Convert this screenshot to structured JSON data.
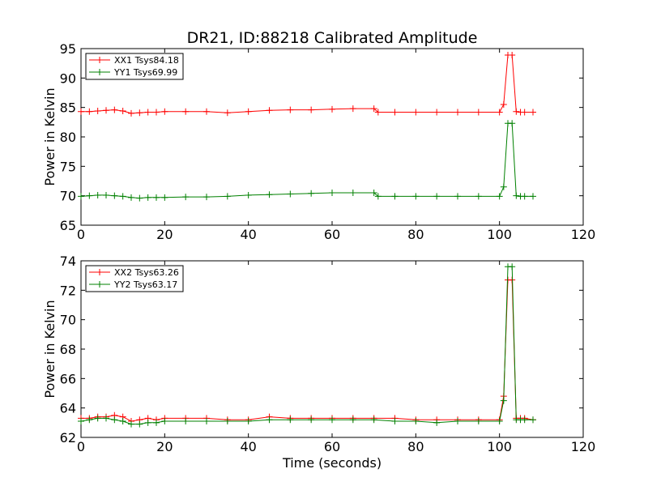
{
  "colors": {
    "xx": "#ff0000",
    "yy": "#008000",
    "axes": "#000000",
    "background": "#ffffff"
  },
  "chart_data": [
    {
      "type": "line",
      "title": "DR21, ID:88218 Calibrated Amplitude",
      "xlabel": "",
      "ylabel": "Power in Kelvin",
      "xlim": [
        0,
        120
      ],
      "ylim": [
        65,
        95
      ],
      "xticks": [
        "0",
        "20",
        "40",
        "60",
        "80",
        "100",
        "120"
      ],
      "yticks": [
        "65",
        "70",
        "75",
        "80",
        "85",
        "90",
        "95"
      ],
      "legend_position": "top-left",
      "marker": "plus",
      "series": [
        {
          "name": "XX1 Tsys84.18",
          "color": "#ff0000",
          "x": [
            0,
            2,
            4,
            6,
            8,
            10,
            12,
            14,
            16,
            18,
            20,
            25,
            30,
            35,
            40,
            45,
            50,
            55,
            60,
            65,
            70,
            71,
            75,
            80,
            85,
            90,
            95,
            100,
            101,
            102,
            103,
            104,
            105,
            106,
            108
          ],
          "y": [
            84.3,
            84.3,
            84.4,
            84.5,
            84.6,
            84.4,
            84.0,
            84.1,
            84.2,
            84.2,
            84.3,
            84.3,
            84.3,
            84.1,
            84.3,
            84.5,
            84.6,
            84.6,
            84.7,
            84.8,
            84.8,
            84.2,
            84.2,
            84.2,
            84.2,
            84.2,
            84.2,
            84.2,
            85.5,
            93.9,
            93.9,
            84.3,
            84.2,
            84.2,
            84.2
          ]
        },
        {
          "name": "YY1 Tsys69.99",
          "color": "#008000",
          "x": [
            0,
            2,
            4,
            6,
            8,
            10,
            12,
            14,
            16,
            18,
            20,
            25,
            30,
            35,
            40,
            45,
            50,
            55,
            60,
            65,
            70,
            71,
            75,
            80,
            85,
            90,
            95,
            100,
            101,
            102,
            103,
            104,
            105,
            106,
            108
          ],
          "y": [
            69.9,
            70.0,
            70.1,
            70.1,
            70.0,
            69.9,
            69.7,
            69.6,
            69.7,
            69.7,
            69.7,
            69.8,
            69.8,
            69.9,
            70.1,
            70.2,
            70.3,
            70.4,
            70.5,
            70.5,
            70.5,
            69.9,
            69.9,
            69.9,
            69.9,
            69.9,
            69.9,
            69.9,
            71.5,
            82.3,
            82.3,
            70.0,
            69.9,
            69.9,
            69.9
          ]
        }
      ]
    },
    {
      "type": "line",
      "title": "",
      "xlabel": "Time (seconds)",
      "ylabel": "Power in Kelvin",
      "xlim": [
        0,
        120
      ],
      "ylim": [
        62,
        74
      ],
      "xticks": [
        "0",
        "20",
        "40",
        "60",
        "80",
        "100",
        "120"
      ],
      "yticks": [
        "62",
        "64",
        "66",
        "68",
        "70",
        "72",
        "74"
      ],
      "legend_position": "top-left",
      "marker": "plus",
      "series": [
        {
          "name": "XX2 Tsys63.26",
          "color": "#ff0000",
          "x": [
            0,
            2,
            4,
            6,
            8,
            10,
            12,
            14,
            16,
            18,
            20,
            25,
            30,
            35,
            40,
            45,
            50,
            55,
            60,
            65,
            70,
            75,
            80,
            85,
            90,
            95,
            100,
            101,
            102,
            103,
            104,
            105,
            106,
            108
          ],
          "y": [
            63.3,
            63.3,
            63.4,
            63.4,
            63.5,
            63.4,
            63.1,
            63.2,
            63.3,
            63.2,
            63.3,
            63.3,
            63.3,
            63.2,
            63.2,
            63.4,
            63.3,
            63.3,
            63.3,
            63.3,
            63.3,
            63.3,
            63.2,
            63.2,
            63.2,
            63.2,
            63.2,
            64.8,
            72.7,
            72.7,
            63.3,
            63.3,
            63.3,
            63.2
          ]
        },
        {
          "name": "YY2 Tsys63.17",
          "color": "#008000",
          "x": [
            0,
            2,
            4,
            6,
            8,
            10,
            12,
            14,
            16,
            18,
            20,
            25,
            30,
            35,
            40,
            45,
            50,
            55,
            60,
            65,
            70,
            75,
            80,
            85,
            90,
            95,
            100,
            101,
            102,
            103,
            104,
            105,
            106,
            108
          ],
          "y": [
            63.1,
            63.2,
            63.3,
            63.3,
            63.2,
            63.1,
            62.9,
            62.9,
            63.0,
            63.0,
            63.1,
            63.1,
            63.1,
            63.1,
            63.1,
            63.2,
            63.2,
            63.2,
            63.2,
            63.2,
            63.2,
            63.1,
            63.1,
            63.0,
            63.1,
            63.1,
            63.1,
            64.5,
            73.6,
            73.6,
            63.2,
            63.2,
            63.2,
            63.2
          ]
        }
      ]
    }
  ]
}
